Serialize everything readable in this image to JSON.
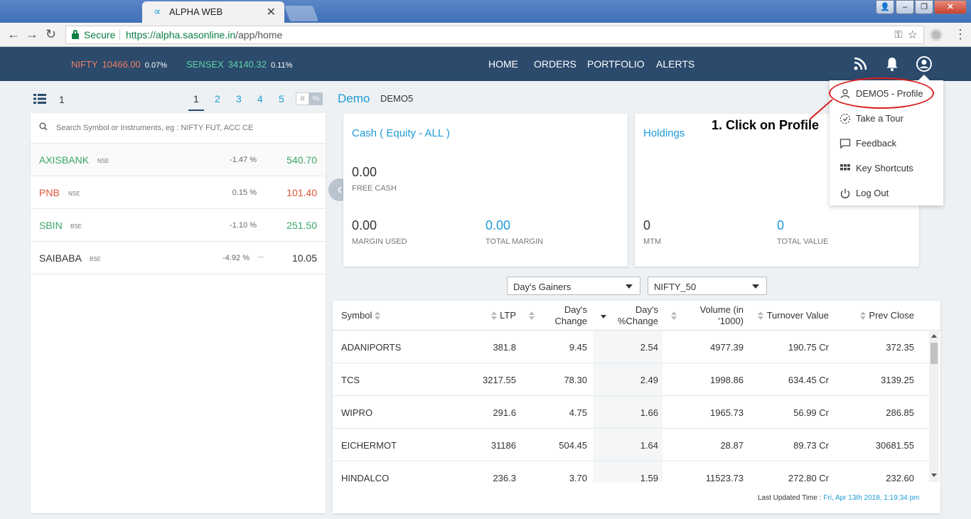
{
  "browser": {
    "tab_title": "ALPHA WEB",
    "tab_icon": "∝",
    "secure_label": "Secure",
    "url_scheme_host": "https://alpha.sasonline.in",
    "url_path": "/app/home"
  },
  "header": {
    "indices": [
      {
        "name": "NIFTY",
        "value": "10466.00",
        "change": "0.07%",
        "color": "#f07f62"
      },
      {
        "name": "SENSEX",
        "value": "34140.32",
        "change": "0.11%",
        "color": "#5fd3a8"
      }
    ],
    "nav": [
      "HOME",
      "ORDERS",
      "PORTFOLIO",
      "ALERTS"
    ]
  },
  "marketwatch": {
    "list_number": "1",
    "pages": [
      "1",
      "2",
      "3",
      "4",
      "5"
    ],
    "toggle_hash": "#",
    "toggle_pct": "%",
    "search_placeholder": "Search Symbol or Instruments, eg : NIFTY FUT, ACC CE",
    "rows": [
      {
        "symbol": "AXISBANK",
        "exchange": "NSE",
        "change": "-1.47 %",
        "ltp": "540.70",
        "color": "#3aa66a"
      },
      {
        "symbol": "PNB",
        "exchange": "NSE",
        "change": "0.15 %",
        "ltp": "101.40",
        "color": "#e0533c"
      },
      {
        "symbol": "SBIN",
        "exchange": "BSE",
        "change": "-1.10 %",
        "ltp": "251.50",
        "color": "#3aa66a"
      },
      {
        "symbol": "SAIBABA",
        "exchange": "BSE",
        "change": "-4.92 %",
        "extra": "---",
        "ltp": "10.05",
        "color": "#333333"
      }
    ]
  },
  "account": {
    "name": "Demo",
    "code": "DEMO5"
  },
  "cash_card": {
    "title": "Cash ( Equity - ALL )",
    "free_cash": "0.00",
    "free_cash_label": "FREE CASH",
    "margin_used": "0.00",
    "margin_used_label": "MARGIN USED",
    "total_margin": "0.00",
    "total_margin_label": "TOTAL MARGIN"
  },
  "holdings_card": {
    "title": "Holdings",
    "mtm": "0",
    "mtm_label": "MTM",
    "total_value": "0",
    "total_value_label": "TOTAL VALUE"
  },
  "profile_menu": {
    "items": [
      "DEMO5 - Profile",
      "Take a Tour",
      "Feedback",
      "Key Shortcuts",
      "Log Out"
    ],
    "icons": [
      "user-icon",
      "tour-icon",
      "feedback-icon",
      "grid-icon",
      "power-icon"
    ]
  },
  "annotation": "1. Click on Profile",
  "movers": {
    "type_select": "Day's Gainers",
    "index_select": "NIFTY_50",
    "columns": [
      "Symbol",
      "LTP",
      "Day's Change",
      "Day's %Change",
      "Volume (in '1000)",
      "Turnover Value",
      "Prev Close"
    ],
    "rows": [
      [
        "ADANIPORTS",
        "381.8",
        "9.45",
        "2.54",
        "4977.39",
        "190.75 Cr",
        "372.35"
      ],
      [
        "TCS",
        "3217.55",
        "78.30",
        "2.49",
        "1998.86",
        "634.45 Cr",
        "3139.25"
      ],
      [
        "WIPRO",
        "291.6",
        "4.75",
        "1.66",
        "1965.73",
        "56.99 Cr",
        "286.85"
      ],
      [
        "EICHERMOT",
        "31186",
        "504.45",
        "1.64",
        "28.87",
        "89.73 Cr",
        "30681.55"
      ],
      [
        "HINDALCO",
        "236.3",
        "3.70",
        "1.59",
        "11523.73",
        "272.80 Cr",
        "232.60"
      ]
    ],
    "updated_label": "Last Updated Time : ",
    "updated_value": "Fri, Apr 13th 2018, 1:19:34 pm"
  }
}
